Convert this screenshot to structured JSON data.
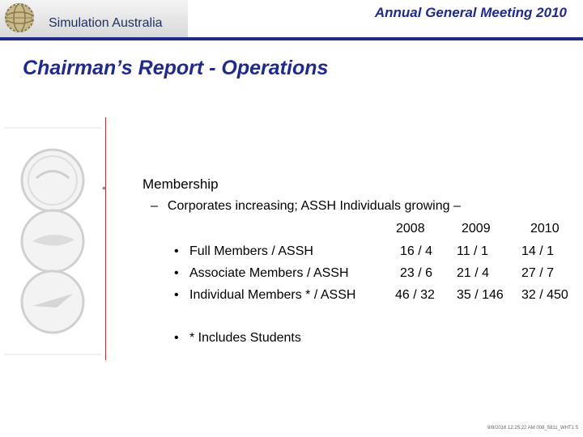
{
  "header": {
    "brand_name": "Simulation Australia",
    "meeting_title": "Annual General Meeting 2010",
    "logo_icon": "globe-logo-icon",
    "accent_color": "#1f2a8a"
  },
  "page_title": "Chairman’s Report - Operations",
  "content": {
    "section_heading": "Membership",
    "sub_dash": "–",
    "sub_text": "Corporates increasing; ASSH Individuals growing –",
    "years": [
      "2008",
      "2009",
      "2010"
    ],
    "rows": [
      {
        "label": "Full Members / ASSH",
        "values": [
          "16 / 4",
          "11 / 1",
          "14 / 1"
        ]
      },
      {
        "label": "Associate Members / ASSH",
        "values": [
          "23 / 6",
          "21 / 4",
          "27 / 7"
        ]
      },
      {
        "label": "Individual Members * / ASSH",
        "values": [
          "46 / 32",
          "35 / 146",
          "32 / 450"
        ]
      }
    ],
    "note": "* Includes Students",
    "bullet_char": "•"
  },
  "footer": {
    "text": "9/8/2016 12:25:22 AM 008_5811_WHT1 5"
  }
}
